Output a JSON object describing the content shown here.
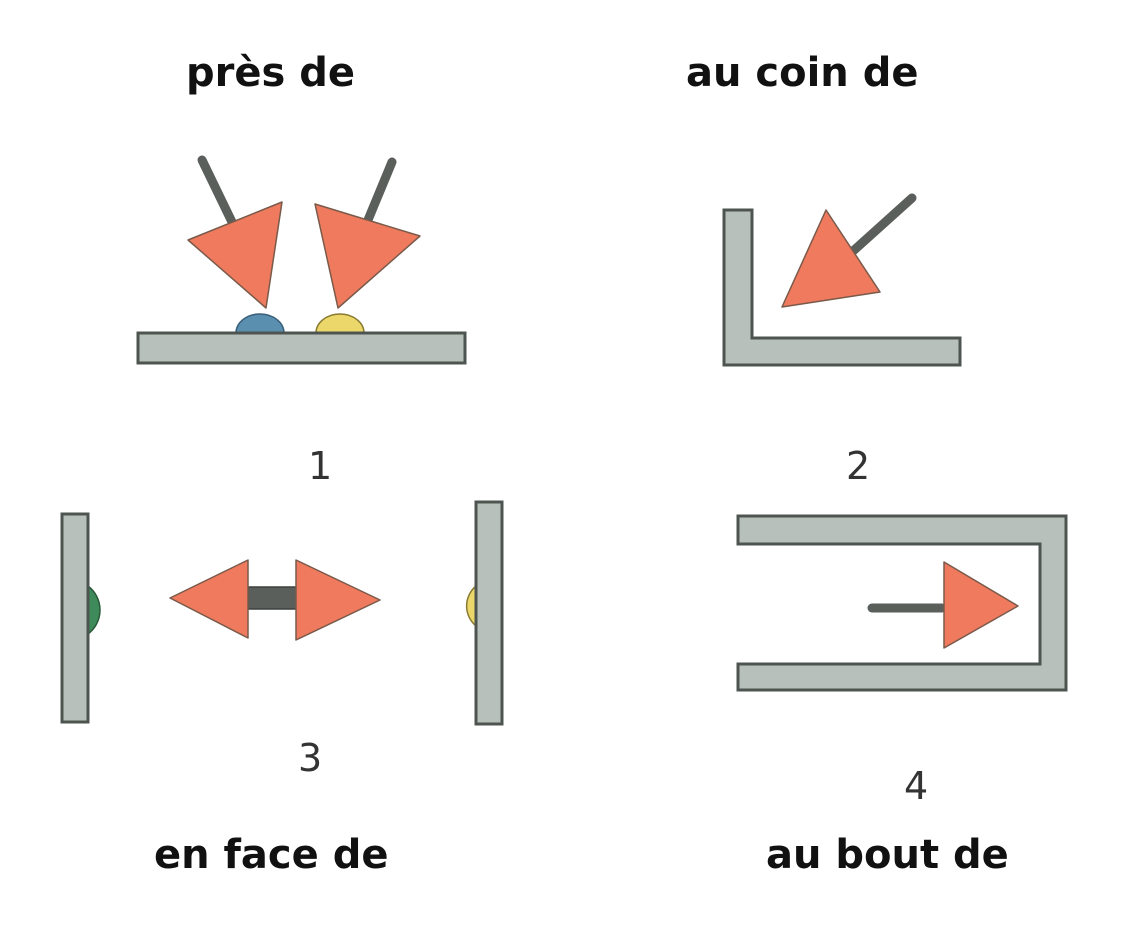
{
  "labels": {
    "pres_de": "près de",
    "au_coin_de": "au coin de",
    "en_face_de": "en face de",
    "au_bout_de": "au bout de"
  },
  "numbers": {
    "one": "1",
    "two": "2",
    "three": "3",
    "four": "4"
  },
  "colors": {
    "arrow_fill": "#ef7a5e",
    "arrow_stroke": "#7a5a4a",
    "wall_fill": "#b8c0bb",
    "wall_stroke": "#4e5551",
    "shaft": "#5a5f5c",
    "button_blue": "#5b8fb0",
    "button_yellow": "#ecd76a",
    "button_green": "#3f8a5a"
  }
}
